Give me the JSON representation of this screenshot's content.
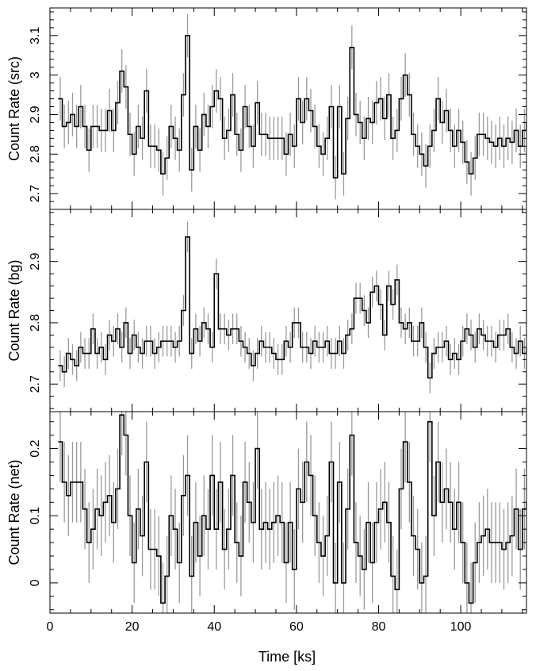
{
  "chart_data": {
    "type": "line",
    "shared_x": {
      "label": "Time [ks]",
      "range": [
        0,
        116
      ],
      "ticks": [
        0,
        20,
        40,
        60,
        80,
        100
      ],
      "bin_width": 1.0,
      "first_bin_start": 2.0
    },
    "panels": [
      {
        "name": "src",
        "ylabel": "Count Rate (src)",
        "ylim": [
          2.66,
          3.17
        ],
        "yticks": [
          2.7,
          2.8,
          2.9,
          3,
          3.1
        ],
        "ytick_labels": [
          "2.7",
          "2.8",
          "2.9",
          "3",
          "3.1"
        ],
        "values": [
          2.94,
          2.87,
          2.88,
          2.9,
          2.87,
          2.92,
          2.87,
          2.81,
          2.87,
          2.87,
          2.86,
          2.86,
          2.91,
          2.86,
          2.93,
          3.01,
          2.97,
          2.85,
          2.8,
          2.87,
          2.84,
          2.96,
          2.82,
          2.82,
          2.81,
          2.75,
          2.79,
          2.87,
          2.84,
          2.81,
          2.95,
          3.1,
          2.76,
          2.87,
          2.81,
          2.9,
          2.87,
          2.92,
          2.96,
          2.94,
          2.84,
          2.86,
          2.95,
          2.85,
          2.81,
          2.92,
          2.87,
          2.82,
          2.93,
          2.85,
          2.85,
          2.84,
          2.84,
          2.84,
          2.84,
          2.8,
          2.85,
          2.82,
          2.94,
          2.88,
          2.94,
          2.91,
          2.87,
          2.82,
          2.8,
          2.84,
          2.92,
          2.74,
          2.92,
          2.75,
          2.89,
          3.07,
          2.9,
          2.88,
          2.84,
          2.89,
          2.88,
          2.93,
          2.94,
          2.89,
          2.95,
          2.84,
          2.86,
          2.94,
          3.0,
          2.95,
          2.85,
          2.82,
          2.8,
          2.77,
          2.82,
          2.86,
          2.94,
          2.88,
          2.91,
          2.86,
          2.82,
          2.86,
          2.83,
          2.78,
          2.75,
          2.79,
          2.85,
          2.85,
          2.84,
          2.83,
          2.82,
          2.84,
          2.82,
          2.84,
          2.83,
          2.86,
          2.82,
          2.86,
          2.88,
          2.81
        ],
        "errors": 0.055
      },
      {
        "name": "bg",
        "ylabel": "Count Rate (bg)",
        "ylim": [
          2.655,
          2.985
        ],
        "yticks": [
          2.7,
          2.8,
          2.9
        ],
        "ytick_labels": [
          "2.7",
          "2.8",
          "2.9"
        ],
        "values": [
          2.73,
          2.72,
          2.75,
          2.74,
          2.73,
          2.76,
          2.75,
          2.75,
          2.79,
          2.75,
          2.76,
          2.74,
          2.78,
          2.77,
          2.79,
          2.76,
          2.8,
          2.75,
          2.78,
          2.76,
          2.75,
          2.77,
          2.77,
          2.75,
          2.76,
          2.77,
          2.77,
          2.77,
          2.76,
          2.77,
          2.82,
          2.94,
          2.75,
          2.79,
          2.77,
          2.8,
          2.79,
          2.76,
          2.88,
          2.79,
          2.79,
          2.78,
          2.79,
          2.79,
          2.77,
          2.76,
          2.75,
          2.73,
          2.75,
          2.77,
          2.76,
          2.76,
          2.75,
          2.74,
          2.74,
          2.77,
          2.76,
          2.8,
          2.8,
          2.76,
          2.76,
          2.75,
          2.77,
          2.76,
          2.76,
          2.77,
          2.75,
          2.75,
          2.77,
          2.75,
          2.78,
          2.79,
          2.84,
          2.84,
          2.82,
          2.8,
          2.85,
          2.86,
          2.83,
          2.78,
          2.86,
          2.83,
          2.87,
          2.8,
          2.79,
          2.8,
          2.77,
          2.77,
          2.8,
          2.76,
          2.71,
          2.75,
          2.76,
          2.76,
          2.77,
          2.74,
          2.75,
          2.74,
          2.77,
          2.79,
          2.78,
          2.76,
          2.79,
          2.78,
          2.77,
          2.77,
          2.76,
          2.78,
          2.78,
          2.79,
          2.76,
          2.75,
          2.77,
          2.75,
          2.76,
          2.76
        ],
        "errors": 0.025
      },
      {
        "name": "net",
        "ylabel": "Count Rate (net)",
        "ylim": [
          -0.045,
          0.255
        ],
        "yticks": [
          0,
          0.1,
          0.2
        ],
        "ytick_labels": [
          "0",
          "0.1",
          "0.2"
        ],
        "values": [
          0.21,
          0.15,
          0.13,
          0.15,
          0.15,
          0.15,
          0.11,
          0.06,
          0.08,
          0.11,
          0.1,
          0.12,
          0.13,
          0.09,
          0.14,
          0.25,
          0.22,
          0.1,
          0.03,
          0.11,
          0.07,
          0.18,
          0.05,
          0.05,
          0.04,
          -0.03,
          0.01,
          0.1,
          0.08,
          0.03,
          0.13,
          0.16,
          0.01,
          0.09,
          0.04,
          0.1,
          0.08,
          0.16,
          0.08,
          0.15,
          0.05,
          0.08,
          0.16,
          0.06,
          0.04,
          0.15,
          0.12,
          0.09,
          0.2,
          0.08,
          0.09,
          0.08,
          0.09,
          0.1,
          0.09,
          0.03,
          0.09,
          0.02,
          0.14,
          0.12,
          0.18,
          0.16,
          0.1,
          0.06,
          0.04,
          0.07,
          0.18,
          0.0,
          0.15,
          0.0,
          0.11,
          0.22,
          0.06,
          0.04,
          0.02,
          0.09,
          0.03,
          0.09,
          0.11,
          0.12,
          0.09,
          0.01,
          -0.01,
          0.14,
          0.21,
          0.15,
          0.07,
          0.05,
          0.0,
          0.01,
          0.24,
          0.1,
          0.18,
          0.12,
          0.14,
          0.12,
          0.08,
          0.12,
          0.06,
          0.0,
          -0.03,
          0.03,
          0.06,
          0.07,
          0.08,
          0.06,
          0.06,
          0.06,
          0.05,
          0.06,
          0.07,
          0.11,
          0.05,
          0.11,
          0.12,
          0.05
        ],
        "errors": 0.06
      }
    ]
  },
  "style": {
    "line_color": "#000000",
    "error_bar_color": "#9a9a9a",
    "axis_color": "#000000",
    "background": "#ffffff"
  }
}
